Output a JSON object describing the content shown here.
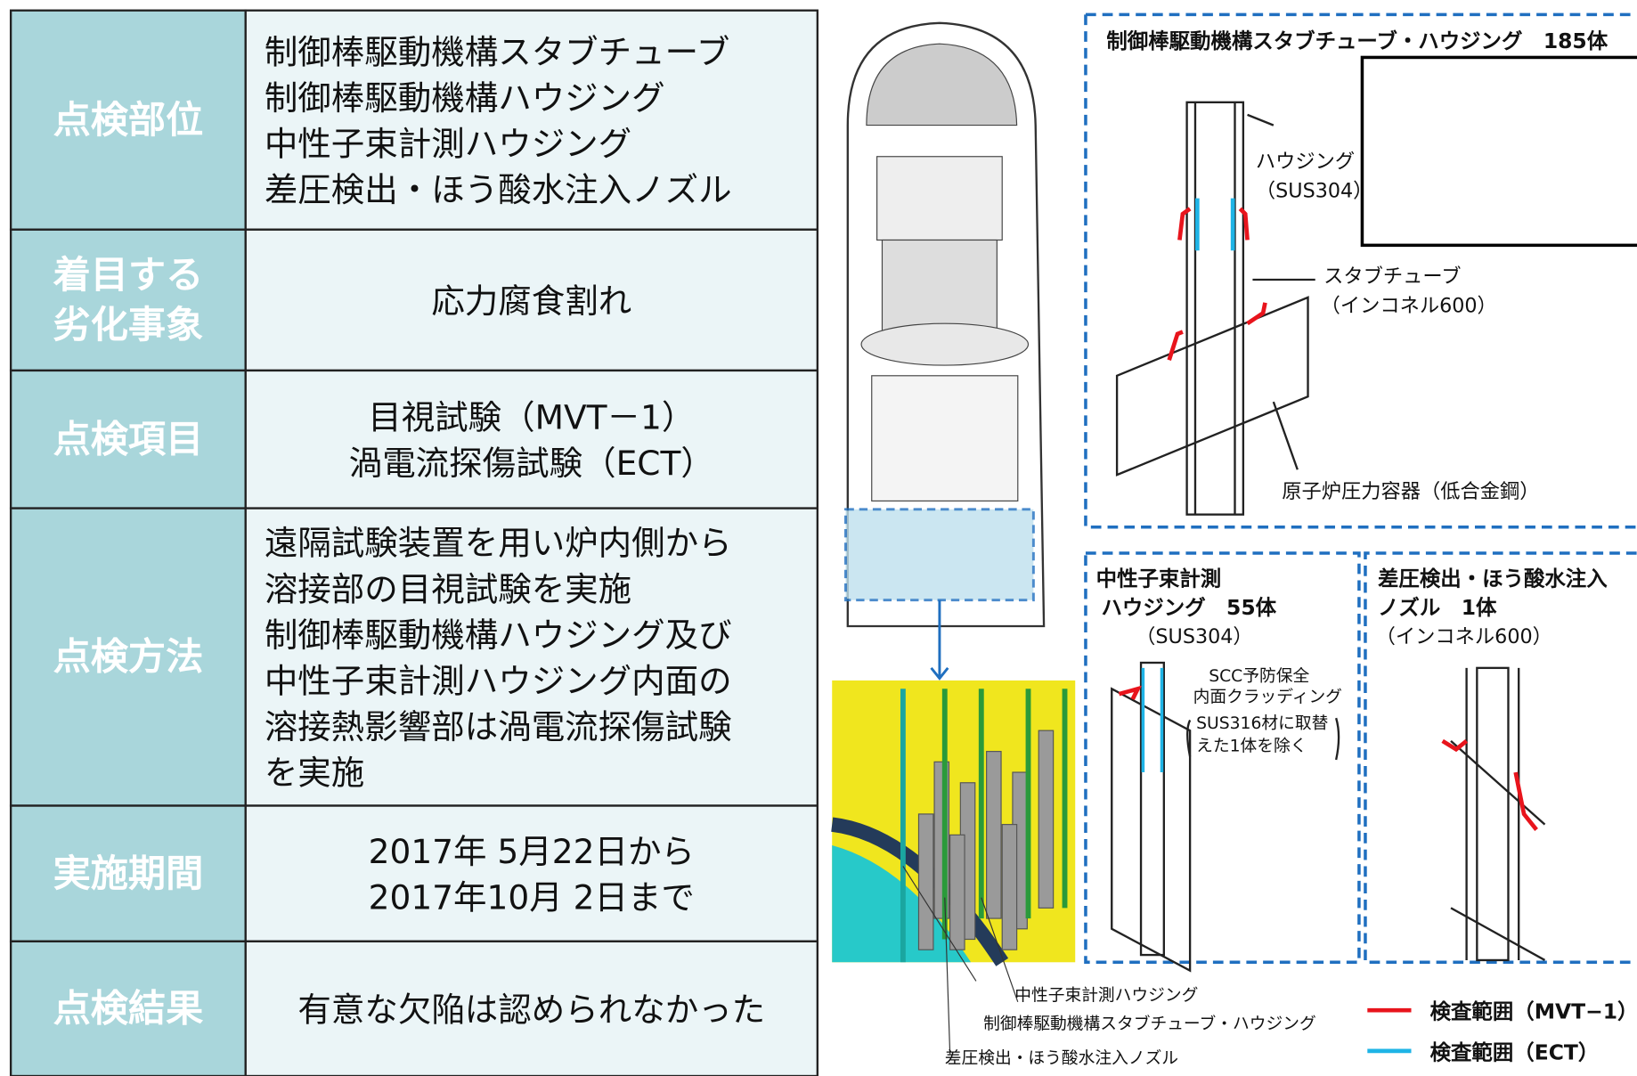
{
  "table": {
    "rows": [
      {
        "label": [
          "点検部位"
        ],
        "content": [
          "制御棒駆動機構スタブチューブ",
          "制御棒駆動機構ハウジング",
          "中性子束計測ハウジング",
          "差圧検出・ほう酸水注入ノズル"
        ]
      },
      {
        "label": [
          "着目する",
          "劣化事象"
        ],
        "content": [
          "応力腐食割れ"
        ]
      },
      {
        "label": [
          "点検項目"
        ],
        "content": [
          "目視試験（MVT－1）",
          "渦電流探傷試験（ECT）"
        ]
      },
      {
        "label": [
          "点検方法"
        ],
        "content": [
          "遠隔試験装置を用い炉内側から",
          "溶接部の目視試験を実施",
          "制御棒駆動機構ハウジング及び",
          "中性子束計測ハウジング内面の",
          "溶接熱影響部は渦電流探傷試験",
          "を実施"
        ]
      },
      {
        "label": [
          "実施期間"
        ],
        "content": [
          "2017年 5月22日から",
          "2017年10月 2日まで"
        ]
      },
      {
        "label": [
          "点検結果"
        ],
        "content": [
          "有意な欠陥は認められなかった"
        ]
      }
    ]
  },
  "diagram": {
    "labels": [
      "制御棒駆動機構スタブチューブ・ハウジング　185体",
      "ハウジング",
      "（SUS304）",
      "スタブチューブ",
      "（インコネル600）",
      "原子炉圧力容器（低合金鋼）",
      "中性子束計測",
      "ハウジング　55体",
      "（SUS304）",
      "差圧検出・ほう酸水注入",
      "ノズル　1体",
      "（インコネル600）",
      "SCC予防保全",
      "内面クラッディング",
      "SUS316材に取替",
      "えた1体を除く",
      "中性子束計測ハウジング",
      "制御棒駆動機構スタブチューブ・ハウジング",
      "差圧検出・ほう酸水注入ノズル"
    ],
    "legend": [
      {
        "name": "検査範囲（MVT−1）",
        "color": "#e8141c"
      },
      {
        "name": "検査範囲（ECT）",
        "color": "#1fb4e6"
      }
    ]
  }
}
